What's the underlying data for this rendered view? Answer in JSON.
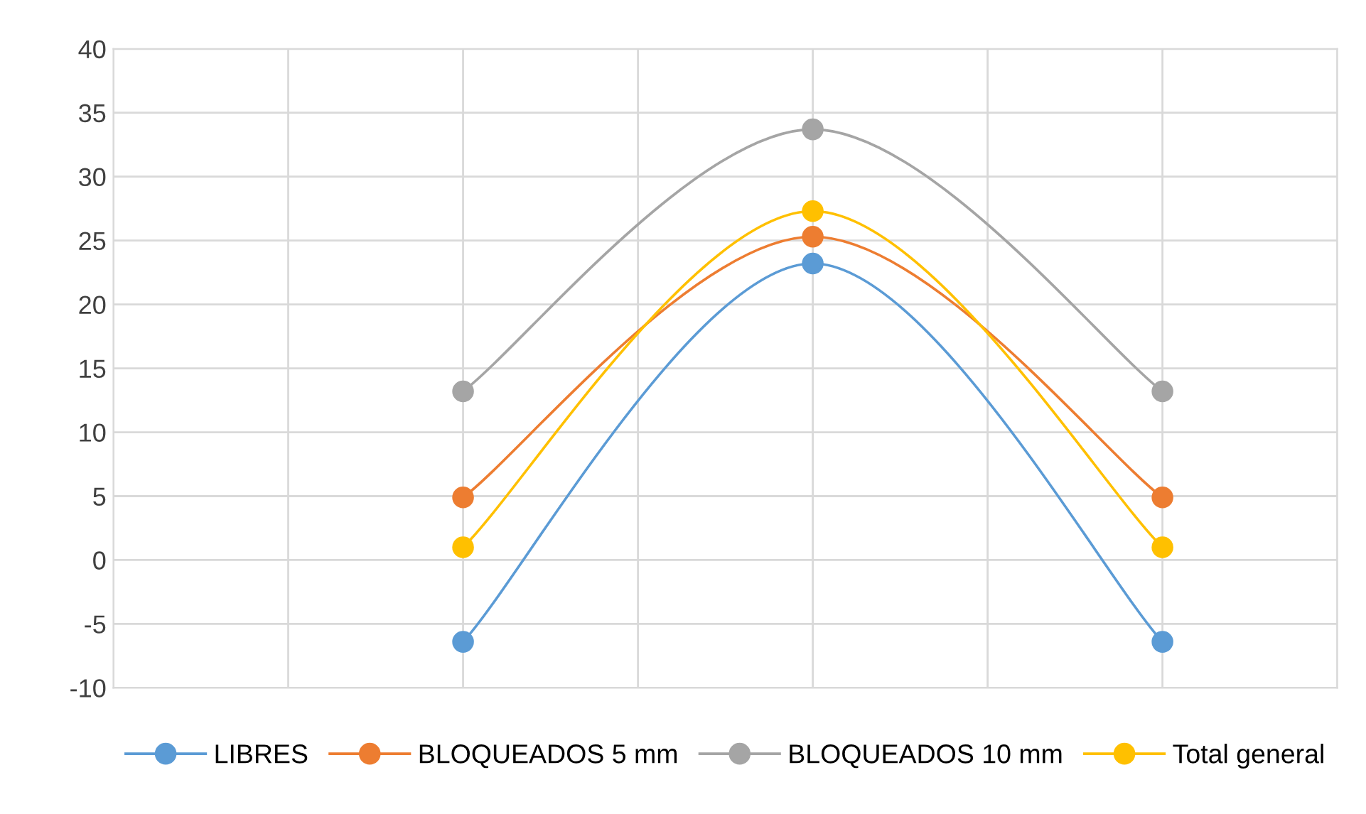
{
  "chart_data": {
    "type": "line",
    "categories": [
      null,
      null,
      null
    ],
    "series": [
      {
        "name": "LIBRES",
        "color": "#5b9bd5",
        "values": [
          -6.4,
          23.2,
          -6.4
        ]
      },
      {
        "name": "BLOQUEADOS 5 mm",
        "color": "#ed7d31",
        "values": [
          4.9,
          25.3,
          4.9
        ]
      },
      {
        "name": "BLOQUEADOS 10 mm",
        "color": "#a5a5a5",
        "values": [
          13.2,
          33.7,
          13.2
        ]
      },
      {
        "name": "Total general",
        "color": "#ffc000",
        "values": [
          1.0,
          27.3,
          1.0
        ]
      }
    ],
    "ylim": [
      -10,
      40
    ],
    "yticks": [
      -10,
      -5,
      0,
      5,
      10,
      15,
      20,
      25,
      30,
      35,
      40
    ],
    "grid": true,
    "legend": "bottom",
    "marker": "circle",
    "line_style": "solid"
  }
}
